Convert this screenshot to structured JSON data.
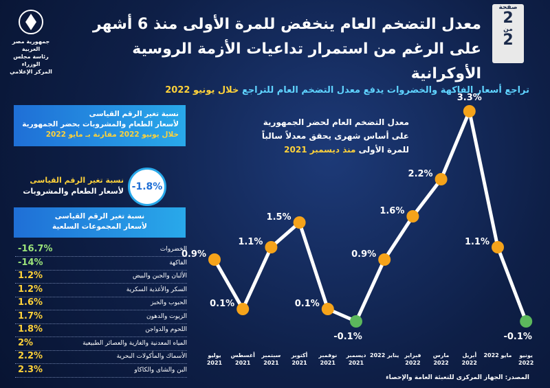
{
  "header": {
    "title_lines": [
      "معدل التضخم العام ينخفض للمرة الأولى منذ 6 أشهر",
      "على الرغم من استمرار تداعيات الأزمة الروسية الأوكرانية"
    ],
    "page_label": "صفحة",
    "page_number": "2",
    "of_label": "من",
    "page_total": "2",
    "logo_lines": [
      "جمهورية مصر العربية",
      "رئاسة مجلس الوزراء",
      "المركز الإعلامي"
    ]
  },
  "subtitle": {
    "text": "تراجع أسعار الفاكهة والخضروات يدفع معدل التضخم العام للتراجع",
    "highlight": "خلال يونيو 2022"
  },
  "food_box": {
    "lines": [
      "نسبة تغير الرقم القياسى",
      "لأسعار الطعام والمشروبات بحضر الجمهورية"
    ],
    "highlight": "خلال يونيو 2022 مقارنة بـ مايو 2022"
  },
  "food_change": {
    "value": "-1.8%",
    "lines": [
      "نسبة تغير الرقم القياسى",
      "لأسعار الطعام والمشروبات"
    ]
  },
  "groups_box": {
    "lines": [
      "نسبة تغير الرقم القياسى",
      "لأسعار المجموعات السلعية"
    ]
  },
  "table": {
    "rows": [
      [
        "الخضروات",
        "-16.7%"
      ],
      [
        "الفاكهة",
        "-14%"
      ],
      [
        "الألبان والجبن والبيض",
        "1.2%"
      ],
      [
        "السكر والأغذية السكرية",
        "1.2%"
      ],
      [
        "الحبوب والخبز",
        "1.6%"
      ],
      [
        "الزيوت والدهون",
        "1.7%"
      ],
      [
        "اللحوم والدواجن",
        "1.8%"
      ],
      [
        "المياه المعدنية والغازية والعصائر الطبيعية",
        "2%"
      ],
      [
        "الأسماك والمأكولات البحرية",
        "2.2%"
      ],
      [
        "البن والشاى والكاكاو",
        "2.3%"
      ]
    ]
  },
  "chart_data": {
    "type": "line",
    "title_lines": [
      "معدل التضخم العام لحضر الجمهورية",
      "على أساس شهرى يحقق معدلاً سالباً",
      "للمرة الأولى"
    ],
    "title_highlight": "منذ ديسمبر 2021",
    "categories": [
      "يوليو 2021",
      "أغسطس 2021",
      "سبتمبر 2021",
      "أكتوبر 2021",
      "نوفمبر 2021",
      "ديسمبر 2021",
      "يناير 2022",
      "فبراير 2022",
      "مارس 2022",
      "أبريل 2022",
      "مايو 2022",
      "يونيو 2022"
    ],
    "values": [
      0.9,
      0.1,
      1.1,
      1.5,
      0.1,
      -0.1,
      0.9,
      1.6,
      2.2,
      3.3,
      1.1,
      -0.1
    ],
    "value_labels": [
      "0.9%",
      "0.1%",
      "1.1%",
      "1.5%",
      "0.1%",
      "-0.1%",
      "0.9%",
      "1.6%",
      "2.2%",
      "3.3%",
      "1.1%",
      "-0.1%"
    ],
    "ylim": [
      -0.5,
      3.5
    ],
    "line_color": "#ffffff",
    "color": "#f5a31a",
    "negative_color": "#5cb85c"
  },
  "source": "المصدر: الجهاز المركزى للتعبئة العامة والإحصاء"
}
